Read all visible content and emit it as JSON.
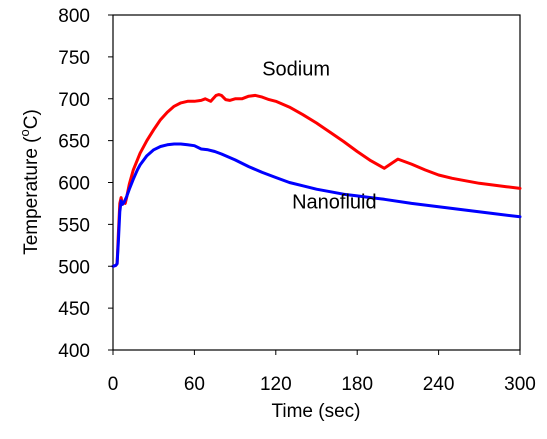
{
  "chart_data": {
    "type": "line",
    "title": "",
    "xlabel": "Time (sec)",
    "ylabel": "Temperature (°C)",
    "ylabel_parts": {
      "prefix": "Temperature (",
      "degree": "o",
      "unit": "C)"
    },
    "xlim": [
      0,
      300
    ],
    "ylim": [
      400,
      800
    ],
    "x_ticks": [
      0,
      60,
      120,
      180,
      240,
      300
    ],
    "y_ticks": [
      400,
      450,
      500,
      550,
      600,
      650,
      700,
      750,
      800
    ],
    "grid": false,
    "legend": "none",
    "series": [
      {
        "name": "Sodium",
        "color": "#ff0000",
        "x": [
          0,
          2,
          3,
          4,
          5,
          6,
          7,
          8,
          9,
          10,
          12,
          15,
          20,
          25,
          30,
          35,
          40,
          45,
          50,
          55,
          60,
          65,
          68,
          72,
          76,
          78,
          80,
          83,
          86,
          90,
          95,
          100,
          105,
          110,
          115,
          120,
          130,
          140,
          150,
          160,
          170,
          180,
          190,
          200,
          210,
          220,
          230,
          240,
          250,
          260,
          270,
          280,
          290,
          300
        ],
        "y": [
          500,
          501,
          503,
          540,
          575,
          582,
          574,
          576,
          575,
          582,
          598,
          615,
          635,
          650,
          663,
          675,
          684,
          691,
          695,
          697,
          697,
          698,
          700,
          697,
          704,
          705,
          704,
          699,
          698,
          700,
          700,
          703,
          704,
          702,
          699,
          697,
          690,
          681,
          671,
          660,
          649,
          637,
          626,
          617,
          628,
          622,
          615,
          609,
          605,
          602,
          599,
          597,
          595,
          593
        ]
      },
      {
        "name": "Nanofluid",
        "color": "#0000ff",
        "x": [
          0,
          2,
          3,
          4,
          5,
          6,
          7,
          8,
          10,
          12,
          15,
          18,
          20,
          25,
          30,
          35,
          40,
          45,
          50,
          55,
          60,
          65,
          70,
          75,
          80,
          90,
          100,
          110,
          120,
          130,
          140,
          150,
          160,
          170,
          180,
          190,
          200,
          220,
          240,
          260,
          280,
          300
        ],
        "y": [
          500,
          501,
          503,
          530,
          565,
          578,
          574,
          576,
          583,
          592,
          604,
          615,
          621,
          632,
          639,
          643,
          645,
          646,
          646,
          645,
          644,
          640,
          639,
          637,
          634,
          627,
          619,
          612,
          606,
          600,
          596,
          592,
          589,
          586,
          584,
          582,
          580,
          575,
          571,
          567,
          563,
          559
        ]
      }
    ],
    "annotations": [
      {
        "text": "Sodium",
        "x": 110,
        "y": 728
      },
      {
        "text": "Nanofluid",
        "x": 132,
        "y": 569
      }
    ]
  }
}
